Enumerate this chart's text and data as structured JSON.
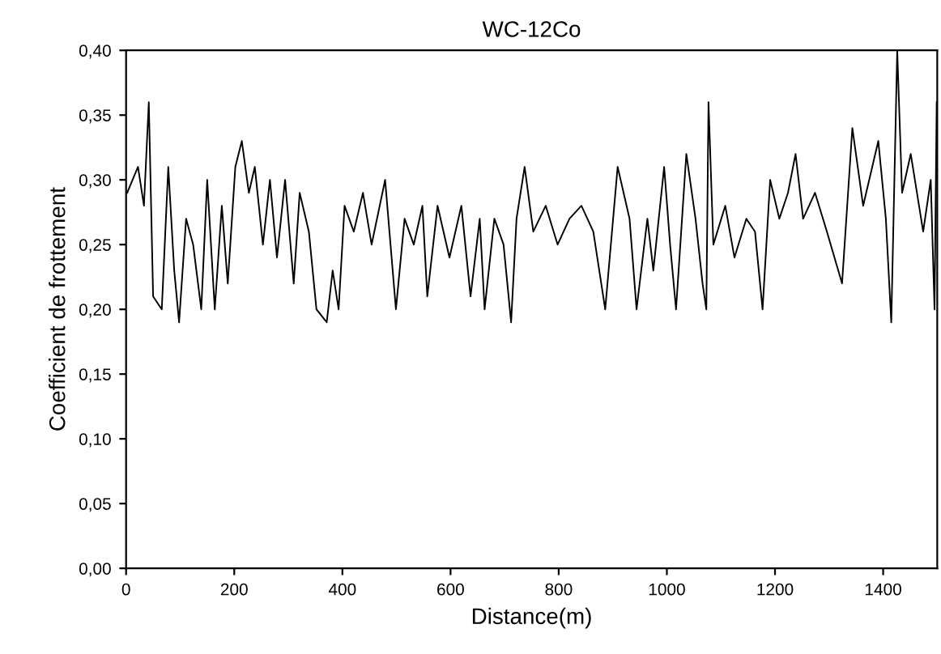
{
  "chart_data": {
    "type": "line",
    "title": "WC-12Co",
    "xlabel": "Distance(m)",
    "ylabel": "Coefficient de frottement",
    "x": [
      2,
      22,
      33,
      42,
      50,
      66,
      78,
      89,
      98,
      111,
      124,
      139,
      150,
      164,
      177,
      188,
      202,
      214,
      227,
      238,
      253,
      266,
      279,
      294,
      310,
      321,
      338,
      352,
      371,
      382,
      393,
      404,
      421,
      438,
      454,
      479,
      499,
      515,
      532,
      548,
      557,
      576,
      598,
      620,
      637,
      654,
      663,
      681,
      698,
      712,
      722,
      737,
      753,
      776,
      798,
      820,
      842,
      864,
      886,
      909,
      931,
      944,
      964,
      975,
      995,
      1006,
      1017,
      1036,
      1053,
      1066,
      1073,
      1077,
      1086,
      1108,
      1125,
      1147,
      1163,
      1177,
      1191,
      1208,
      1224,
      1238,
      1252,
      1274,
      1296,
      1324,
      1343,
      1363,
      1391,
      1405,
      1415,
      1426,
      1435,
      1451,
      1474,
      1488,
      1495,
      1499
    ],
    "series": [
      {
        "color": "#000000",
        "values": [
          0.29,
          0.31,
          0.28,
          0.36,
          0.21,
          0.2,
          0.31,
          0.23,
          0.19,
          0.27,
          0.25,
          0.2,
          0.3,
          0.2,
          0.28,
          0.22,
          0.31,
          0.33,
          0.29,
          0.31,
          0.25,
          0.3,
          0.24,
          0.3,
          0.22,
          0.29,
          0.26,
          0.2,
          0.19,
          0.23,
          0.2,
          0.28,
          0.26,
          0.29,
          0.25,
          0.3,
          0.2,
          0.27,
          0.25,
          0.28,
          0.21,
          0.28,
          0.24,
          0.28,
          0.21,
          0.27,
          0.2,
          0.27,
          0.25,
          0.19,
          0.27,
          0.31,
          0.26,
          0.28,
          0.25,
          0.27,
          0.28,
          0.26,
          0.2,
          0.31,
          0.27,
          0.2,
          0.27,
          0.23,
          0.31,
          0.25,
          0.2,
          0.32,
          0.27,
          0.22,
          0.2,
          0.36,
          0.25,
          0.28,
          0.24,
          0.27,
          0.26,
          0.2,
          0.3,
          0.27,
          0.29,
          0.32,
          0.27,
          0.29,
          0.26,
          0.22,
          0.34,
          0.28,
          0.33,
          0.27,
          0.19,
          0.4,
          0.29,
          0.32,
          0.26,
          0.3,
          0.2,
          0.36
        ]
      }
    ],
    "xlim": [
      0,
      1500
    ],
    "xticks": [
      0,
      200,
      400,
      600,
      800,
      1000,
      1200,
      1400
    ],
    "ylim": [
      0,
      0.4
    ],
    "yticks": [
      {
        "value": 0,
        "label": "0,00"
      },
      {
        "value": 0.05,
        "label": "0,05"
      },
      {
        "value": 0.1,
        "label": "0,10"
      },
      {
        "value": 0.15,
        "label": "0,15"
      },
      {
        "value": 0.2,
        "label": "0,20"
      },
      {
        "value": 0.25,
        "label": "0,25"
      },
      {
        "value": 0.3,
        "label": "0,30"
      },
      {
        "value": 0.35,
        "label": "0,35"
      },
      {
        "value": 0.4,
        "label": "0,40"
      }
    ]
  }
}
